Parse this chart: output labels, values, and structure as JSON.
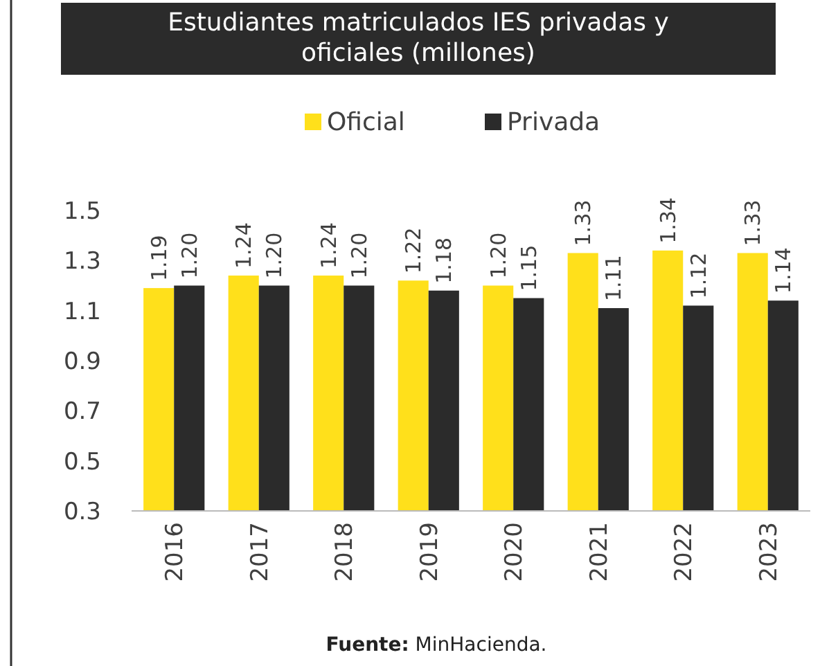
{
  "chart_data": {
    "type": "bar",
    "title": "Estudiantes matriculados IES privadas y oficiales (millones)",
    "categories": [
      "2016",
      "2017",
      "2018",
      "2019",
      "2020",
      "2021",
      "2022",
      "2023"
    ],
    "series": [
      {
        "name": "Oficial",
        "color": "#ffe01b",
        "values": [
          1.19,
          1.24,
          1.24,
          1.22,
          1.2,
          1.33,
          1.34,
          1.33
        ],
        "value_labels": [
          "1.19",
          "1.24",
          "1.24",
          "1.22",
          "1.20",
          "1.33",
          "1.34",
          "1.33"
        ]
      },
      {
        "name": "Privada",
        "color": "#2b2b2b",
        "values": [
          1.2,
          1.2,
          1.2,
          1.18,
          1.15,
          1.11,
          1.12,
          1.14
        ],
        "value_labels": [
          "1.20",
          "1.20",
          "1.20",
          "1.18",
          "1.15",
          "1.11",
          "1.12",
          "1.14"
        ]
      }
    ],
    "ylim": [
      0.3,
      1.5
    ],
    "yticks": [
      {
        "value": 0.3,
        "label": "0.3"
      },
      {
        "value": 0.5,
        "label": "0.5"
      },
      {
        "value": 0.7,
        "label": "0.7"
      },
      {
        "value": 0.9,
        "label": "0.9"
      },
      {
        "value": 1.1,
        "label": "1.1"
      },
      {
        "value": 1.3,
        "label": "1.3"
      },
      {
        "value": 1.5,
        "label": "1.5"
      }
    ],
    "grid": false,
    "legend": "top",
    "annotations": [
      "Fuente: MinHacienda."
    ]
  }
}
